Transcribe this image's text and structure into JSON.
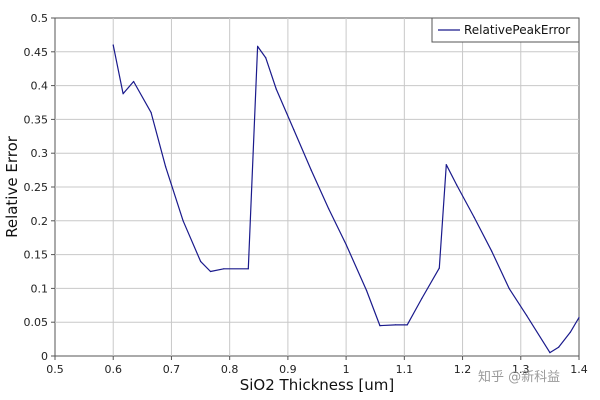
{
  "chart_data": {
    "type": "line",
    "xlabel": "SiO2 Thickness [um]",
    "ylabel": "Relative Error",
    "xlim": [
      0.5,
      1.4
    ],
    "ylim": [
      0,
      0.5
    ],
    "xticks": [
      "0.5",
      "0.6",
      "0.7",
      "0.8",
      "0.9",
      "1",
      "1.1",
      "1.2",
      "1.3",
      "1.4"
    ],
    "yticks": [
      "0",
      "0.05",
      "0.1",
      "0.15",
      "0.2",
      "0.25",
      "0.3",
      "0.35",
      "0.4",
      "0.45",
      "0.5"
    ],
    "grid": true,
    "legend_position": "top-right",
    "series": [
      {
        "name": "RelativePeakError",
        "color": "#1a1a8c",
        "x": [
          0.6,
          0.617,
          0.635,
          0.665,
          0.69,
          0.72,
          0.75,
          0.767,
          0.79,
          0.832,
          0.848,
          0.862,
          0.88,
          0.91,
          0.94,
          0.97,
          1.0,
          1.035,
          1.058,
          1.085,
          1.105,
          1.13,
          1.16,
          1.172,
          1.19,
          1.22,
          1.25,
          1.28,
          1.31,
          1.35,
          1.365,
          1.385,
          1.4
        ],
        "y": [
          0.46,
          0.388,
          0.406,
          0.36,
          0.28,
          0.2,
          0.14,
          0.125,
          0.129,
          0.129,
          0.458,
          0.441,
          0.395,
          0.335,
          0.275,
          0.218,
          0.165,
          0.097,
          0.045,
          0.046,
          0.046,
          0.085,
          0.13,
          0.283,
          0.253,
          0.205,
          0.155,
          0.1,
          0.06,
          0.005,
          0.013,
          0.035,
          0.057
        ]
      }
    ]
  },
  "watermark": "知乎 @新科益"
}
